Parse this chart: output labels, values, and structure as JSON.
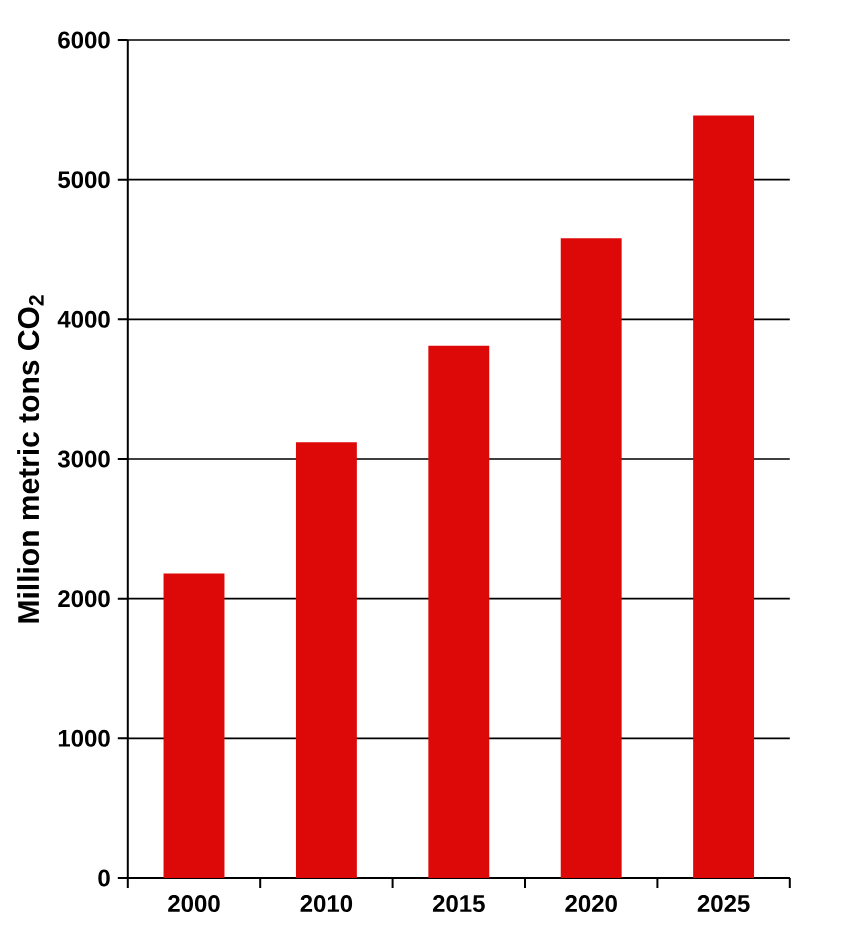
{
  "chart_data": {
    "type": "bar",
    "ylabel": "Million metric tons CO$_{2}$",
    "categories": [
      "2000",
      "2010",
      "2015",
      "2020",
      "2025"
    ],
    "values": [
      2180,
      3120,
      3810,
      4580,
      5460
    ],
    "color": "#dd0808",
    "ylim": [
      0,
      6000
    ],
    "yticks": [
      0,
      1000,
      2000,
      3000,
      4000,
      5000,
      6000
    ],
    "grid": "y"
  }
}
